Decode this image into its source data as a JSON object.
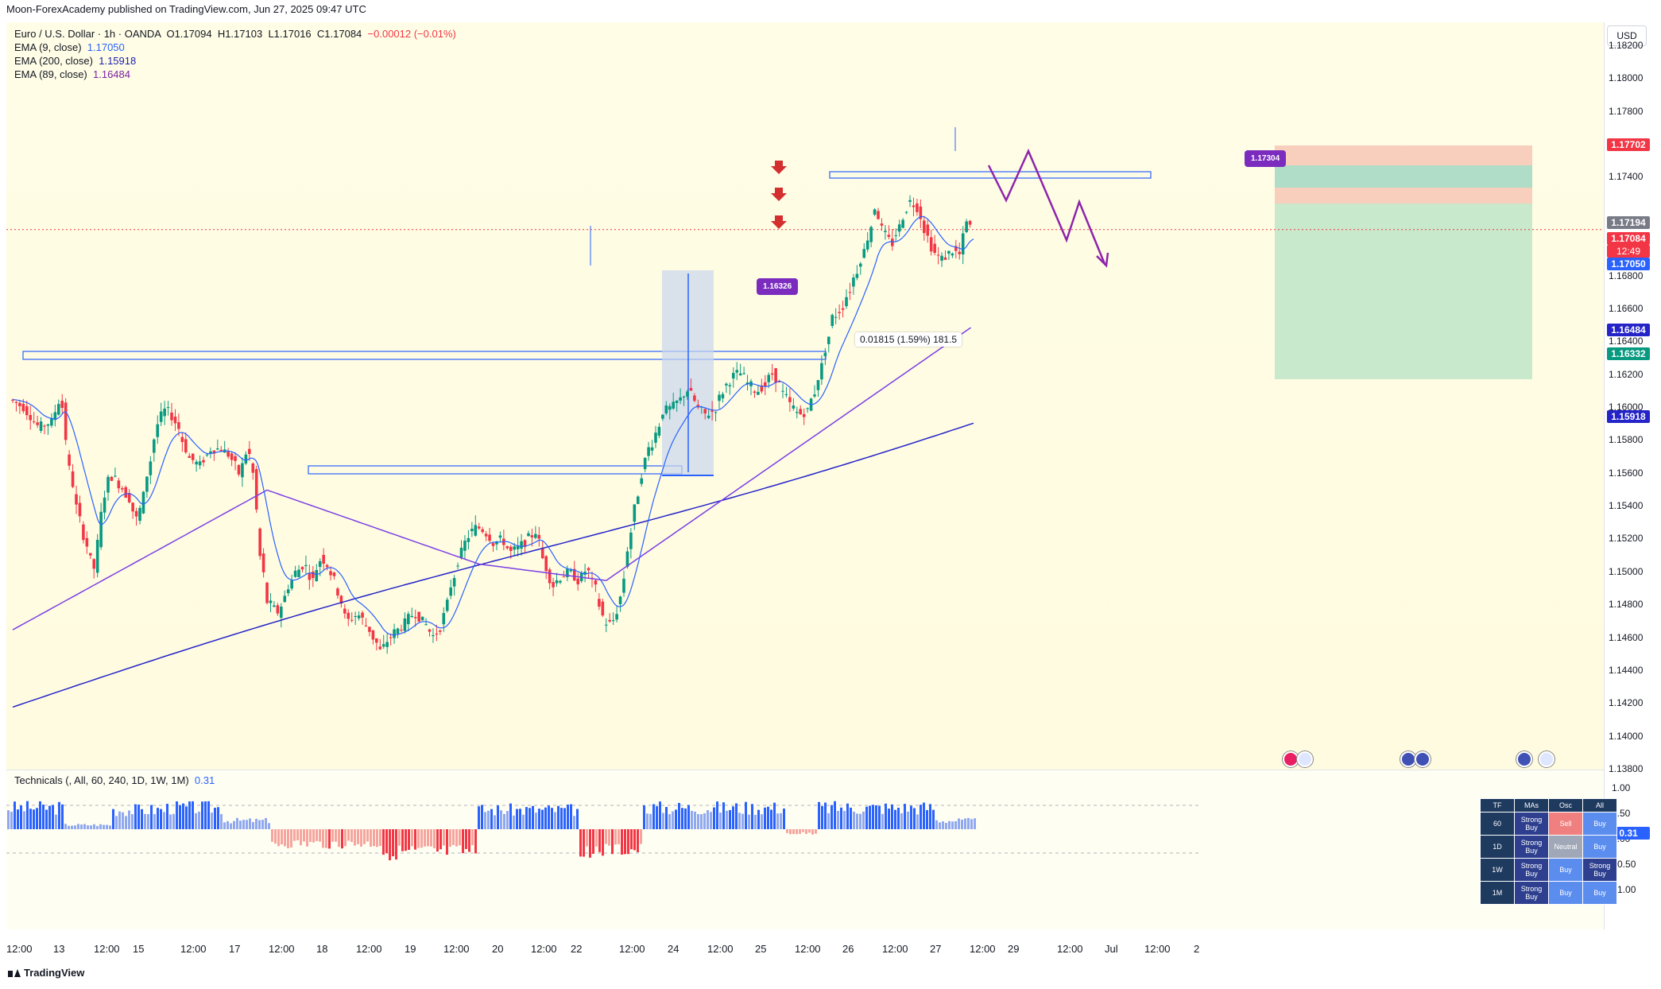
{
  "header": {
    "published": "Moon-ForexAcademy published on TradingView.com, Jun 27, 2025 09:47 UTC"
  },
  "legend": {
    "symbol": "Euro / U.S. Dollar · 1h · OANDA",
    "open": "O1.17094",
    "high": "H1.17103",
    "low": "L1.17016",
    "close": "C1.17084",
    "change": "−0.00012 (−0.01%)",
    "ema9_label": "EMA (9, close)",
    "ema9_value": "1.17050",
    "ema200_label": "EMA (200, close)",
    "ema200_value": "1.15918",
    "ema89_label": "EMA (89, close)",
    "ema89_value": "1.16484"
  },
  "currency_button": "USD",
  "price_scale": {
    "labels": [
      "1.18200",
      "1.18000",
      "1.17800",
      "1.17600",
      "1.17400",
      "1.16800",
      "1.16600",
      "1.16400",
      "1.16200",
      "1.16000",
      "1.15800",
      "1.15600",
      "1.15400",
      "1.15200",
      "1.15000",
      "1.14800",
      "1.14600",
      "1.14400",
      "1.14200",
      "1.14000",
      "1.13800"
    ],
    "tags": {
      "tp_top": "1.17702",
      "entry": "1.17194",
      "last": "1.17084",
      "timer": "12:49",
      "ema9": "1.17050",
      "ema89": "1.16484",
      "target": "1.16332",
      "ema200": "1.15918"
    }
  },
  "annotations": {
    "callout_high": "1.17304",
    "callout_resistance": "1.16326",
    "measure": "0.01815 (1.59%) 181.5"
  },
  "technicals": {
    "header": "Technicals (, All, 60, 240, 1D, 1W, 1M)",
    "value": "0.31",
    "scale_labels": [
      "1.00",
      "0.50",
      "0.00",
      "−0.50",
      "−1.00"
    ],
    "current_tag": "0.31",
    "table": {
      "headers": [
        "TF",
        "MAs",
        "Osc",
        "All"
      ],
      "rows": [
        {
          "tf": "60",
          "mas": "Strong Buy",
          "osc": "Sell",
          "all": "Buy"
        },
        {
          "tf": "1D",
          "mas": "Strong Buy",
          "osc": "Neutral",
          "all": "Buy"
        },
        {
          "tf": "1W",
          "mas": "Strong Buy",
          "osc": "Buy",
          "all": "Strong Buy"
        },
        {
          "tf": "1M",
          "mas": "Strong Buy",
          "osc": "Buy",
          "all": "Buy"
        }
      ]
    }
  },
  "time_axis": [
    "12:00",
    "13",
    "12:00",
    "15",
    "12:00",
    "17",
    "12:00",
    "18",
    "12:00",
    "19",
    "12:00",
    "20",
    "12:00",
    "22",
    "12:00",
    "24",
    "12:00",
    "25",
    "12:00",
    "26",
    "12:00",
    "27",
    "12:00",
    "29",
    "12:00",
    "Jul",
    "12:00",
    "2"
  ],
  "brand": "TradingView",
  "colors": {
    "up": "#089981",
    "down": "#f23645",
    "ema9": "#2962ff",
    "ema89": "#7b3fe4",
    "ema200": "#2424c8",
    "zone": "#2962ff",
    "projection": "#8e24aa"
  },
  "chart_data": {
    "type": "candlestick",
    "ylim": [
      1.137,
      1.183
    ],
    "candle_count": 294,
    "path_keypoints": [
      [
        0,
        1.1605
      ],
      [
        10,
        1.16
      ],
      [
        20,
        1.1588
      ],
      [
        30,
        1.1592
      ],
      [
        36,
        1.161
      ],
      [
        40,
        1.1572
      ],
      [
        48,
        1.1535
      ],
      [
        56,
        1.151
      ],
      [
        60,
        1.15
      ],
      [
        64,
        1.1535
      ],
      [
        70,
        1.156
      ],
      [
        76,
        1.1555
      ],
      [
        84,
        1.1545
      ],
      [
        90,
        1.153
      ],
      [
        96,
        1.1555
      ],
      [
        104,
        1.159
      ],
      [
        110,
        1.16
      ],
      [
        118,
        1.159
      ],
      [
        126,
        1.157
      ],
      [
        134,
        1.1565
      ],
      [
        142,
        1.1575
      ],
      [
        150,
        1.1575
      ],
      [
        156,
        1.157
      ],
      [
        162,
        1.156
      ],
      [
        168,
        1.1575
      ],
      [
        172,
        1.156
      ],
      [
        176,
        1.1515
      ],
      [
        182,
        1.1482
      ],
      [
        190,
        1.1475
      ],
      [
        196,
        1.149
      ],
      [
        202,
        1.15
      ],
      [
        208,
        1.1505
      ],
      [
        214,
        1.1495
      ],
      [
        220,
        1.151
      ],
      [
        226,
        1.1502
      ],
      [
        232,
        1.1488
      ],
      [
        238,
        1.147
      ],
      [
        246,
        1.1475
      ],
      [
        254,
        1.1465
      ],
      [
        262,
        1.1452
      ],
      [
        270,
        1.1462
      ],
      [
        278,
        1.1468
      ],
      [
        286,
        1.1476
      ],
      [
        294,
        1.1468
      ],
      [
        300,
        1.146
      ],
      [
        306,
        1.147
      ],
      [
        312,
        1.1492
      ],
      [
        318,
        1.151
      ],
      [
        324,
        1.1522
      ],
      [
        330,
        1.1528
      ],
      [
        336,
        1.1525
      ],
      [
        342,
        1.1518
      ],
      [
        348,
        1.152
      ],
      [
        354,
        1.1512
      ],
      [
        360,
        1.1515
      ],
      [
        366,
        1.152
      ],
      [
        372,
        1.1525
      ],
      [
        378,
        1.1505
      ],
      [
        384,
        1.1492
      ],
      [
        390,
        1.1498
      ],
      [
        396,
        1.15
      ],
      [
        402,
        1.1495
      ],
      [
        408,
        1.1502
      ],
      [
        414,
        1.149
      ],
      [
        420,
        1.147
      ],
      [
        426,
        1.1468
      ],
      [
        432,
        1.1485
      ],
      [
        438,
        1.152
      ],
      [
        444,
        1.1548
      ],
      [
        450,
        1.1572
      ],
      [
        456,
        1.1582
      ],
      [
        462,
        1.1598
      ],
      [
        468,
        1.16
      ],
      [
        474,
        1.1605
      ],
      [
        480,
        1.1612
      ],
      [
        486,
        1.16
      ],
      [
        492,
        1.1596
      ],
      [
        498,
        1.1598
      ],
      [
        504,
        1.161
      ],
      [
        510,
        1.1618
      ],
      [
        516,
        1.1622
      ],
      [
        522,
        1.1615
      ],
      [
        528,
        1.161
      ],
      [
        534,
        1.1614
      ],
      [
        540,
        1.1622
      ],
      [
        546,
        1.161
      ],
      [
        552,
        1.1602
      ],
      [
        558,
        1.1596
      ],
      [
        564,
        1.1598
      ],
      [
        570,
        1.1612
      ],
      [
        576,
        1.1632
      ],
      [
        582,
        1.1655
      ],
      [
        588,
        1.166
      ],
      [
        594,
        1.1672
      ],
      [
        600,
        1.1686
      ],
      [
        606,
        1.17
      ],
      [
        612,
        1.1722
      ],
      [
        618,
        1.1706
      ],
      [
        624,
        1.17
      ],
      [
        630,
        1.1712
      ],
      [
        636,
        1.1726
      ],
      [
        642,
        1.1722
      ],
      [
        648,
        1.1706
      ],
      [
        654,
        1.1694
      ],
      [
        660,
        1.169
      ],
      [
        666,
        1.1696
      ],
      [
        672,
        1.1693
      ],
      [
        676,
        1.1714
      ],
      [
        680,
        1.1708
      ]
    ]
  }
}
